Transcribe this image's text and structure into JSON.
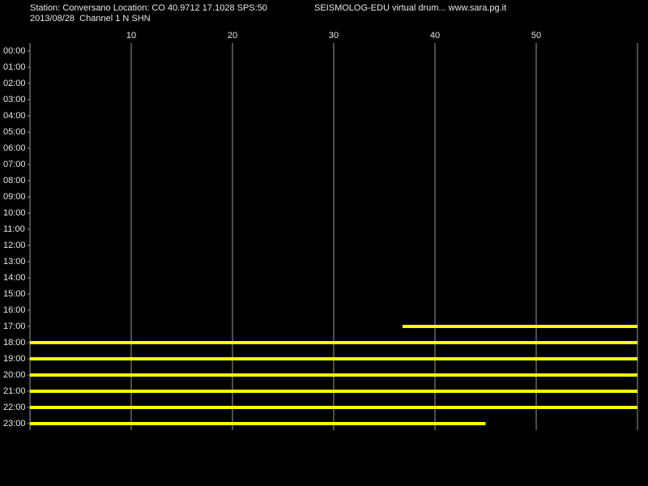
{
  "chart_data": {
    "type": "drum",
    "title": "Station: Conversano Location: CO 40.9712 17.1028 SPS:50",
    "subtitle": "2013/08/28  Channel 1 N SHN",
    "annotation": "SEISMOLOG-EDU virtual drum... www.sara.pg.it",
    "xlim": [
      0,
      60
    ],
    "xticks": [
      10,
      20,
      30,
      40,
      50
    ],
    "rows": [
      "00:00",
      "01:00",
      "02:00",
      "03:00",
      "04:00",
      "05:00",
      "06:00",
      "07:00",
      "08:00",
      "09:00",
      "10:00",
      "11:00",
      "12:00",
      "13:00",
      "14:00",
      "15:00",
      "16:00",
      "17:00",
      "18:00",
      "19:00",
      "20:00",
      "21:00",
      "22:00",
      "23:00"
    ],
    "start": [
      null,
      null,
      null,
      null,
      null,
      null,
      null,
      null,
      null,
      null,
      null,
      null,
      null,
      null,
      null,
      null,
      null,
      36.8,
      0,
      0,
      0,
      0,
      0,
      0
    ],
    "end": [
      null,
      null,
      null,
      null,
      null,
      null,
      null,
      null,
      null,
      null,
      null,
      null,
      null,
      null,
      null,
      null,
      null,
      60,
      60,
      60,
      60,
      60,
      60,
      45
    ],
    "color": "#ffff00",
    "grid": true
  }
}
